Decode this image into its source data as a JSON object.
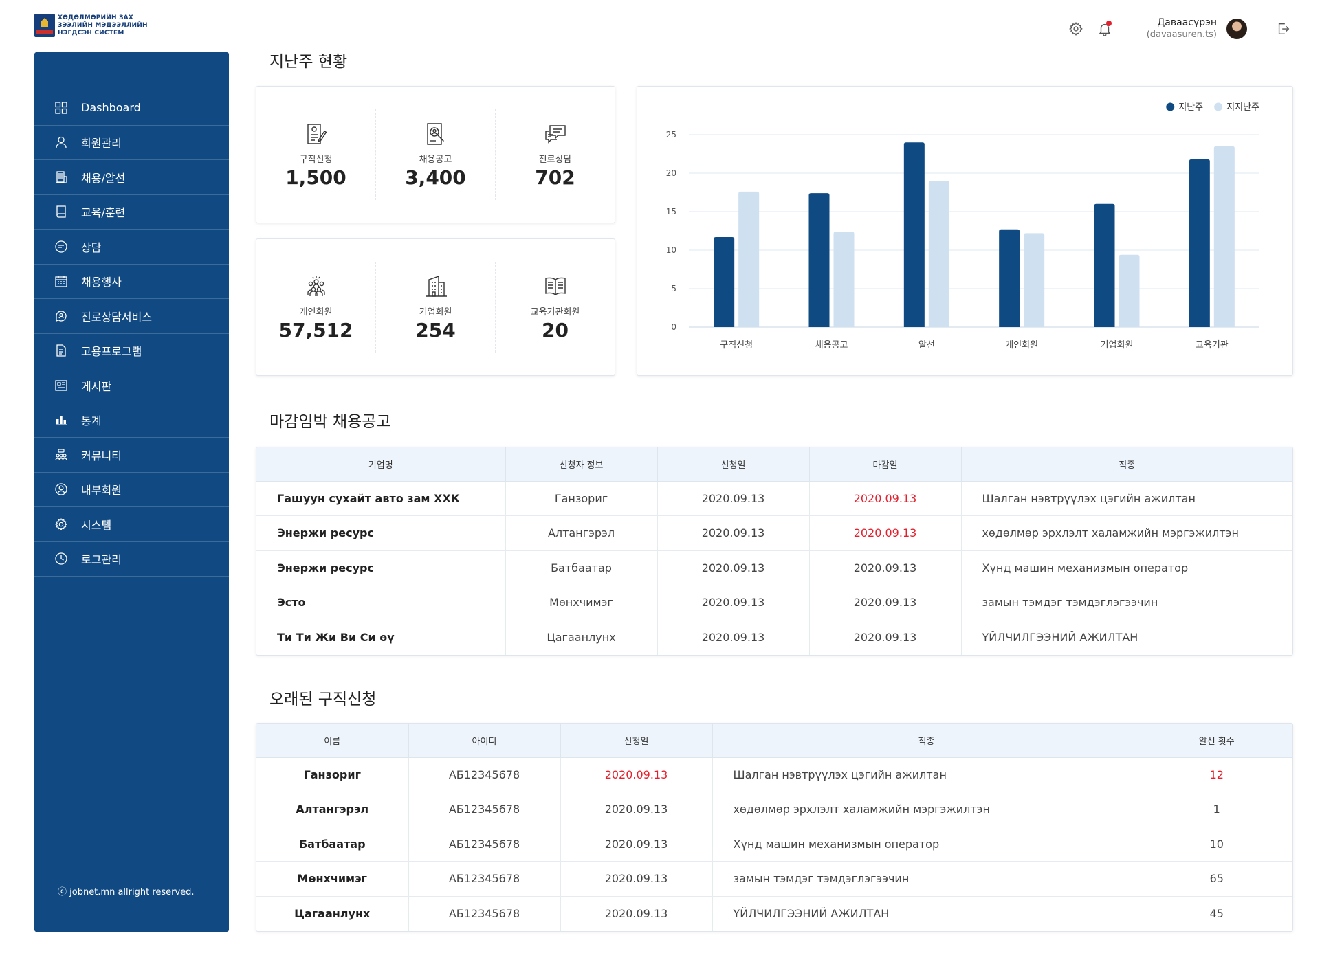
{
  "brand": {
    "logo_line1": "ХӨДӨЛМӨРИЙН ЗАХ",
    "logo_line2": "ЗЭЭЛИЙН МЭДЭЭЛЛИЙН",
    "logo_line3": "НЭГДСЭН СИСТЕМ",
    "primary_color": "#114a82"
  },
  "header": {
    "user_name": "Даваасүрэн",
    "user_id": "(davaasuren.ts)",
    "icons": [
      "gear-icon",
      "bell-icon",
      "avatar",
      "logout-icon"
    ]
  },
  "sidebar": {
    "items": [
      {
        "label": "Dashboard",
        "icon": "dashboard-grid-icon"
      },
      {
        "label": "회원관리",
        "icon": "user-icon"
      },
      {
        "label": "채용/알선",
        "icon": "building-icon"
      },
      {
        "label": "교육/훈련",
        "icon": "book-icon"
      },
      {
        "label": "상담",
        "icon": "chat-icon"
      },
      {
        "label": "채용행사",
        "icon": "calendar-icon"
      },
      {
        "label": "진로상담서비스",
        "icon": "consult-icon"
      },
      {
        "label": "고용프로그램",
        "icon": "document-icon"
      },
      {
        "label": "게시판",
        "icon": "board-icon"
      },
      {
        "label": "통계",
        "icon": "bar-chart-icon"
      },
      {
        "label": "커뮤니티",
        "icon": "community-icon"
      },
      {
        "label": "내부회원",
        "icon": "member-circle-icon"
      },
      {
        "label": "시스템",
        "icon": "settings-icon"
      },
      {
        "label": "로그관리",
        "icon": "clock-icon"
      }
    ],
    "copyright": "ⓒ jobnet.mn allright reserved."
  },
  "weekly": {
    "title": "지난주 현황",
    "stats_top": [
      {
        "label": "구직신청",
        "value": "1,500",
        "icon": "application-icon"
      },
      {
        "label": "채용공고",
        "value": "3,400",
        "icon": "search-doc-icon"
      },
      {
        "label": "진로상담",
        "value": "702",
        "icon": "chat-bubbles-icon"
      }
    ],
    "stats_bottom": [
      {
        "label": "개인회원",
        "value": "57,512",
        "icon": "people-group-icon"
      },
      {
        "label": "기업회원",
        "value": "254",
        "icon": "company-building-icon"
      },
      {
        "label": "교육기관회원",
        "value": "20",
        "icon": "open-book-icon"
      }
    ]
  },
  "chart_data": {
    "type": "bar",
    "categories": [
      "구직신청",
      "채용공고",
      "알선",
      "개인회원",
      "기업회원",
      "교육기관"
    ],
    "series": [
      {
        "name": "지난주",
        "values": [
          11.7,
          17.4,
          24,
          12.7,
          16,
          21.8
        ],
        "color": "#0f4a82"
      },
      {
        "name": "지지난주",
        "values": [
          17.6,
          12.4,
          19,
          12.2,
          9.4,
          23.5
        ],
        "color": "#cfe0f0"
      }
    ],
    "yticks": [
      0,
      5,
      10,
      15,
      20,
      25
    ],
    "ylim": [
      0,
      25
    ],
    "grid": true,
    "legend": "top-right"
  },
  "deadline": {
    "title": "마감임박 채용공고",
    "columns": [
      "기업명",
      "신청자 정보",
      "신청일",
      "마감일",
      "직종"
    ],
    "rows": [
      {
        "company": "Гашуун сухайт авто зам ХХК",
        "applicant": "Ганзориг",
        "applied": "2020.09.13",
        "deadline": "2020.09.13",
        "deadline_urgent": true,
        "job": "Шалган нэвтрүүлэх цэгийн ажилтан"
      },
      {
        "company": "Энержи ресурс",
        "applicant": "Алтангэрэл",
        "applied": "2020.09.13",
        "deadline": "2020.09.13",
        "deadline_urgent": true,
        "job": "хөдөлмөр эрхлэлт халамжийн мэргэжилтэн"
      },
      {
        "company": "Энержи ресурс",
        "applicant": "Батбаатар",
        "applied": "2020.09.13",
        "deadline": "2020.09.13",
        "deadline_urgent": false,
        "job": "Хүнд машин механизмын оператор"
      },
      {
        "company": "Эсто",
        "applicant": "Мөнхчимэг",
        "applied": "2020.09.13",
        "deadline": "2020.09.13",
        "deadline_urgent": false,
        "job": "замын тэмдэг тэмдэглэгээчин"
      },
      {
        "company": "Ти Ти Жи Ви Си өү",
        "applicant": "Цагаанлунх",
        "applied": "2020.09.13",
        "deadline": "2020.09.13",
        "deadline_urgent": false,
        "job": "ҮЙЛЧИЛГЭЭНИЙ АЖИЛТАН"
      }
    ]
  },
  "old_apps": {
    "title": "오래된 구직신청",
    "columns": [
      "이름",
      "아이디",
      "신청일",
      "직종",
      "알선 횟수"
    ],
    "rows": [
      {
        "name": "Ганзориг",
        "id": "АБ12345678",
        "applied": "2020.09.13",
        "applied_urgent": true,
        "job": "Шалган нэвтрүүлэх цэгийн ажилтан",
        "count": "12",
        "count_urgent": true
      },
      {
        "name": "Алтангэрэл",
        "id": "АБ12345678",
        "applied": "2020.09.13",
        "applied_urgent": false,
        "job": "хөдөлмөр эрхлэлт халамжийн мэргэжилтэн",
        "count": "1",
        "count_urgent": false
      },
      {
        "name": "Батбаатар",
        "id": "АБ12345678",
        "applied": "2020.09.13",
        "applied_urgent": false,
        "job": "Хүнд машин механизмын оператор",
        "count": "10",
        "count_urgent": false
      },
      {
        "name": "Мөнхчимэг",
        "id": "АБ12345678",
        "applied": "2020.09.13",
        "applied_urgent": false,
        "job": "замын тэмдэг тэмдэглэгээчин",
        "count": "65",
        "count_urgent": false
      },
      {
        "name": "Цагаанлунх",
        "id": "АБ12345678",
        "applied": "2020.09.13",
        "applied_urgent": false,
        "job": "ҮЙЛЧИЛГЭЭНИЙ АЖИЛТАН",
        "count": "45",
        "count_urgent": false
      }
    ]
  }
}
